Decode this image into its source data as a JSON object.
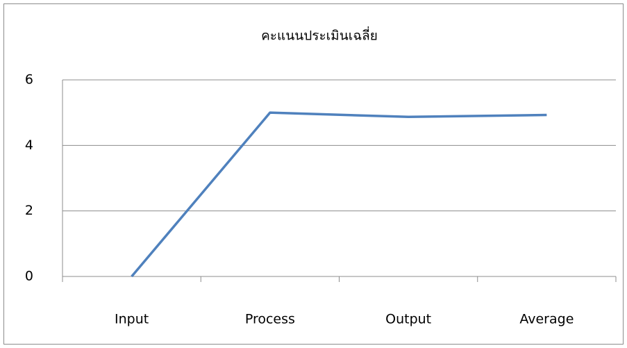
{
  "chart_data": {
    "type": "line",
    "title": "คะแนนประเมินเฉลี่ย",
    "categories": [
      "Input",
      "Process",
      "Output",
      "Average"
    ],
    "series": [
      {
        "name": "คะแนนประเมินเฉลี่ย",
        "color": "#4f81bd",
        "values": [
          0,
          5,
          4.87,
          4.93
        ]
      }
    ],
    "ylim": [
      0,
      6
    ],
    "yticks": [
      0,
      2,
      4,
      6
    ],
    "grid": true
  }
}
